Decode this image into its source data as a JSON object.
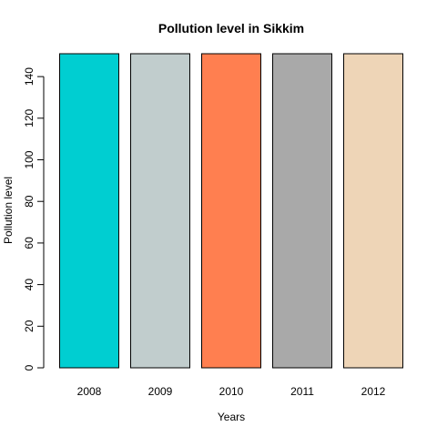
{
  "chart_data": {
    "type": "bar",
    "title": "Pollution level in Sikkim",
    "xlabel": "Years",
    "ylabel": "Pollution level",
    "categories": [
      "2008",
      "2009",
      "2010",
      "2011",
      "2012"
    ],
    "values": [
      151,
      151,
      151,
      151,
      151
    ],
    "colors": [
      "#00CED1",
      "#C1CDCD",
      "#FF7F50",
      "#A9A9A9",
      "#EED5B7"
    ],
    "yticks": [
      0,
      20,
      40,
      60,
      80,
      100,
      120,
      140
    ],
    "ylim": [
      0,
      151
    ],
    "grid": false,
    "legend": "none"
  }
}
